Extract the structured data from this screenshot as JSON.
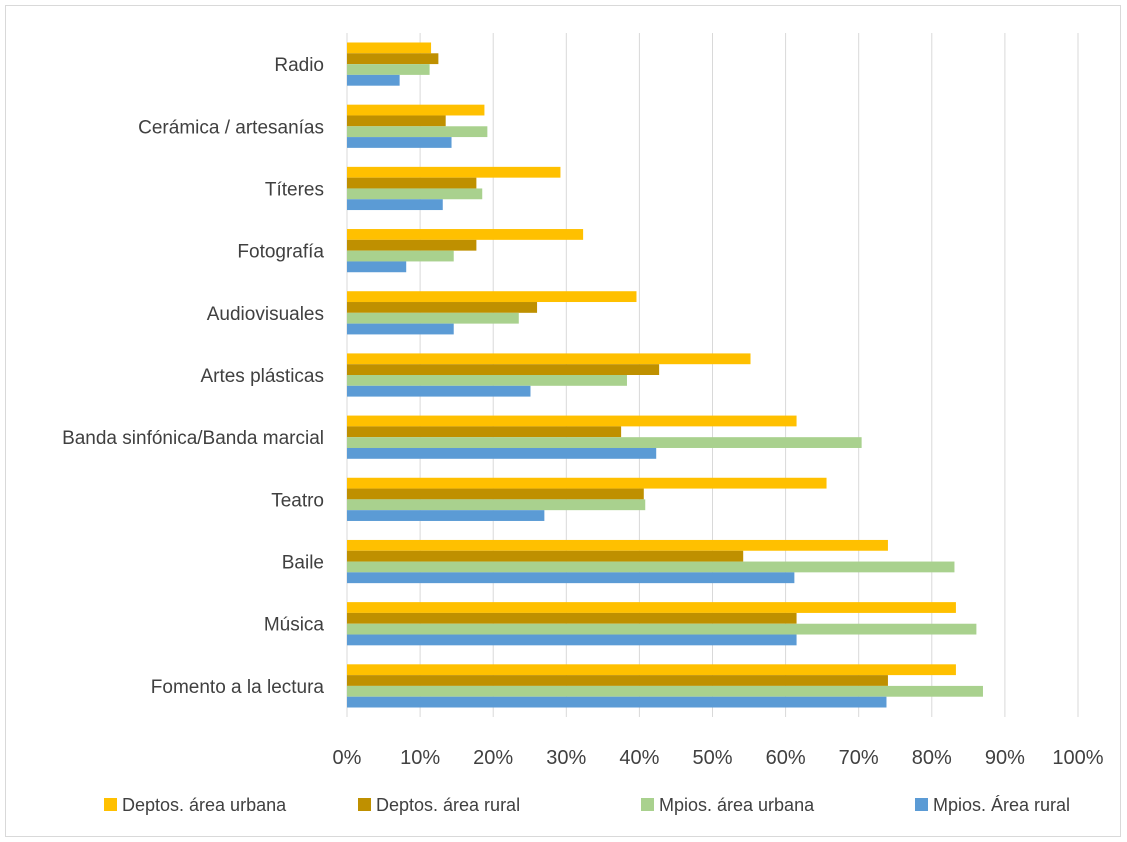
{
  "chart_data": {
    "type": "bar",
    "orientation": "horizontal",
    "title": "",
    "xlabel": "",
    "ylabel": "",
    "xlim": [
      0,
      100
    ],
    "x_ticks": [
      "0%",
      "10%",
      "20%",
      "30%",
      "40%",
      "50%",
      "60%",
      "70%",
      "80%",
      "90%",
      "100%"
    ],
    "grid": true,
    "legend_position": "bottom",
    "categories": [
      "Radio",
      "Cerámica / artesanías",
      "Títeres",
      "Fotografía",
      "Audiovisuales",
      "Artes plásticas",
      "Banda sinfónica/Banda marcial",
      "Teatro",
      "Baile",
      "Música",
      "Fomento a la lectura"
    ],
    "series": [
      {
        "name": "Deptos. área urbana",
        "color": "#FFC000",
        "values": [
          11.5,
          18.8,
          29.2,
          32.3,
          39.6,
          55.2,
          61.5,
          65.6,
          74.0,
          83.3,
          83.3
        ]
      },
      {
        "name": "Deptos. área rural",
        "color": "#BF9000",
        "values": [
          12.5,
          13.5,
          17.7,
          17.7,
          26.0,
          42.7,
          37.5,
          40.6,
          54.2,
          61.5,
          74.0
        ]
      },
      {
        "name": "Mpios. área urbana",
        "color": "#A9D18E",
        "values": [
          11.3,
          19.2,
          18.5,
          14.6,
          23.5,
          38.3,
          70.4,
          40.8,
          83.1,
          86.1,
          87.0
        ]
      },
      {
        "name": "Mpios. Área rural",
        "color": "#5B9BD5",
        "values": [
          7.2,
          14.3,
          13.1,
          8.1,
          14.6,
          25.1,
          42.3,
          27.0,
          61.2,
          61.5,
          73.8
        ]
      }
    ]
  }
}
